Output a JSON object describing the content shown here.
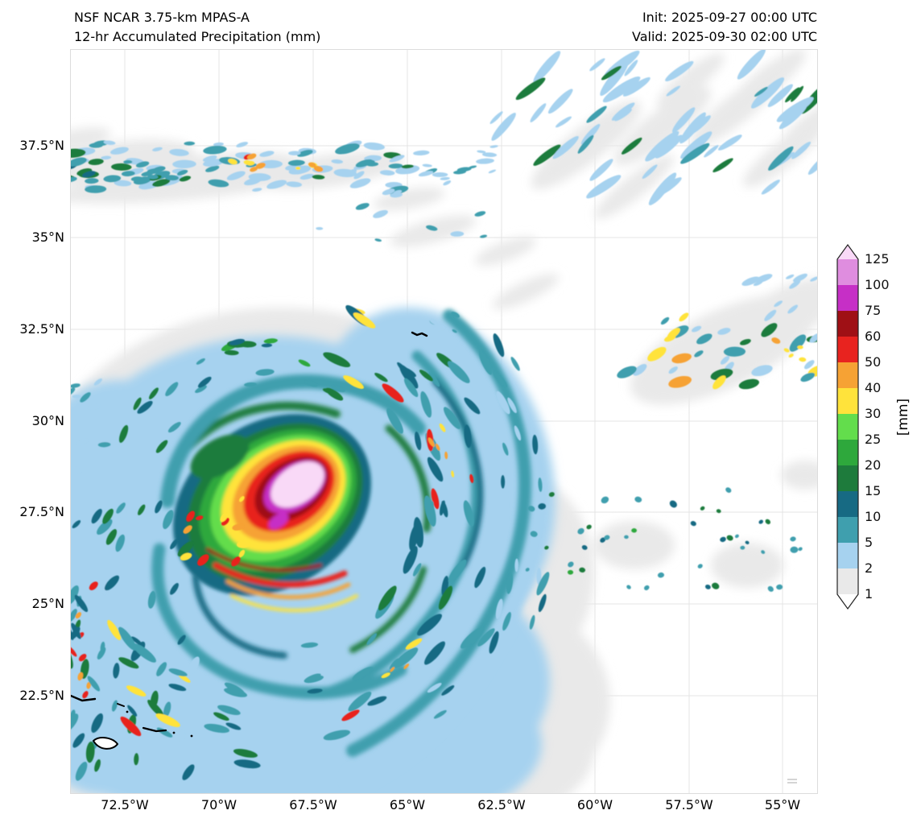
{
  "header": {
    "model": "NSF NCAR 3.75-km MPAS-A",
    "product": "12-hr Accumulated Precipitation (mm)",
    "init": "Init: 2025-09-27 00:00 UTC",
    "valid": "Valid: 2025-09-30 02:00 UTC"
  },
  "map": {
    "lat_ticks": [
      "37.5°N",
      "35°N",
      "32.5°N",
      "30°N",
      "27.5°N",
      "25°N",
      "22.5°N"
    ],
    "lon_ticks": [
      "72.5°W",
      "70°W",
      "67.5°W",
      "65°W",
      "62.5°W",
      "60°W",
      "57.5°W",
      "55°W"
    ]
  },
  "colorbar": {
    "unit": "[mm]",
    "levels": [
      1,
      2,
      5,
      10,
      15,
      20,
      25,
      30,
      40,
      50,
      60,
      75,
      100,
      125
    ],
    "band_colors": [
      "#e9e9e9",
      "#a6d2ef",
      "#3f9fae",
      "#176a83",
      "#1e7b3c",
      "#2ea83c",
      "#63dd4c",
      "#ffe33b",
      "#f6a234",
      "#e8231f",
      "#9f1015",
      "#c62fc6",
      "#df8ddf"
    ],
    "under_color": "#ffffff",
    "over_color": "#f9d9f7"
  }
}
